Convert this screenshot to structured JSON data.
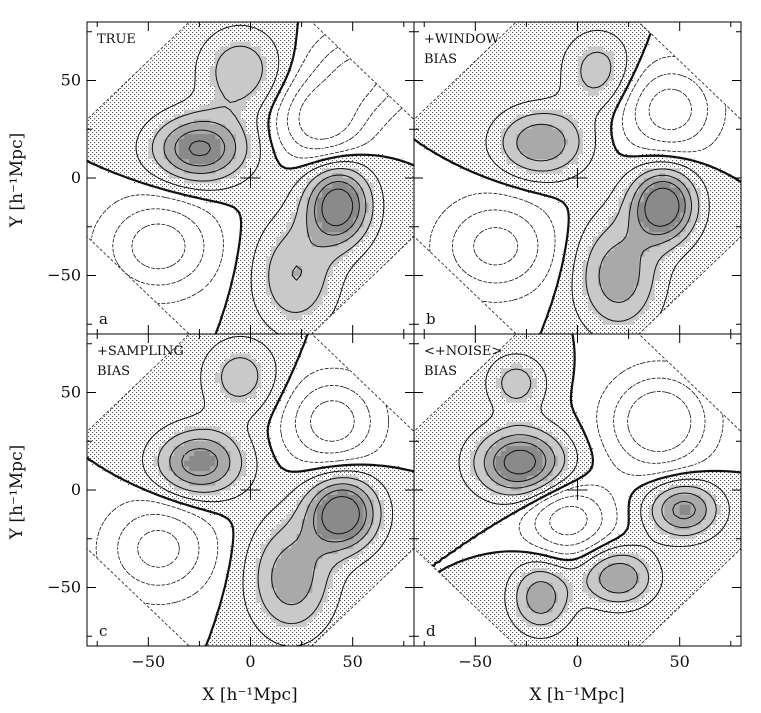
{
  "chart_data": {
    "type": "contour",
    "xlim": [
      -80,
      80
    ],
    "ylim": [
      -80,
      80
    ],
    "x_ticks": [
      -50,
      0,
      50
    ],
    "y_ticks": [
      -50,
      0,
      50
    ],
    "x_tick_labels": [
      "−50",
      "0",
      "50"
    ],
    "y_tick_labels": [
      "−50",
      "0",
      "50"
    ],
    "xlabel": "X [h⁻¹Mpc]",
    "ylabel": "Y [h⁻¹Mpc]",
    "grid": false,
    "panels": [
      {
        "letter": "a",
        "label_lines": [
          "TRUE"
        ],
        "peaks": [
          {
            "x": -25,
            "y": 15,
            "sx": 16,
            "sy": 12,
            "amp": 1.0
          },
          {
            "x": 43,
            "y": -14,
            "sx": 11,
            "sy": 14,
            "amp": 1.15
          },
          {
            "x": 22,
            "y": -50,
            "sx": 14,
            "sy": 20,
            "amp": 0.55
          },
          {
            "x": -5,
            "y": 55,
            "sx": 14,
            "sy": 15,
            "amp": 0.5
          },
          {
            "x": 35,
            "y": 30,
            "sx": 14,
            "sy": 14,
            "amp": -0.7
          },
          {
            "x": -45,
            "y": -35,
            "sx": 18,
            "sy": 16,
            "amp": -0.65
          },
          {
            "x": 55,
            "y": 55,
            "sx": 16,
            "sy": 14,
            "amp": -0.55
          }
        ]
      },
      {
        "letter": "b",
        "label_lines": [
          "+WINDOW",
          "BIAS"
        ],
        "peaks": [
          {
            "x": -18,
            "y": 18,
            "sx": 15,
            "sy": 12,
            "amp": 0.75
          },
          {
            "x": 42,
            "y": -14,
            "sx": 11,
            "sy": 13,
            "amp": 1.2
          },
          {
            "x": 20,
            "y": -50,
            "sx": 14,
            "sy": 20,
            "amp": 0.7
          },
          {
            "x": 10,
            "y": 55,
            "sx": 12,
            "sy": 14,
            "amp": 0.45
          },
          {
            "x": 45,
            "y": 35,
            "sx": 15,
            "sy": 15,
            "amp": -0.65
          },
          {
            "x": -40,
            "y": -35,
            "sx": 18,
            "sy": 16,
            "amp": -0.6
          }
        ]
      },
      {
        "letter": "c",
        "label_lines": [
          "+SAMPLING",
          "BIAS"
        ],
        "peaks": [
          {
            "x": -25,
            "y": 14,
            "sx": 15,
            "sy": 12,
            "amp": 0.9
          },
          {
            "x": 45,
            "y": -12,
            "sx": 12,
            "sy": 13,
            "amp": 1.2
          },
          {
            "x": 20,
            "y": -45,
            "sx": 14,
            "sy": 20,
            "amp": 0.7
          },
          {
            "x": -5,
            "y": 58,
            "sx": 13,
            "sy": 14,
            "amp": 0.45
          },
          {
            "x": 40,
            "y": 35,
            "sx": 15,
            "sy": 15,
            "amp": -0.65
          },
          {
            "x": -45,
            "y": -30,
            "sx": 17,
            "sy": 16,
            "amp": -0.6
          }
        ]
      },
      {
        "letter": "d",
        "label_lines": [
          "<+NOISE>",
          "BIAS"
        ],
        "peaks": [
          {
            "x": -28,
            "y": 14,
            "sx": 15,
            "sy": 12,
            "amp": 1.1
          },
          {
            "x": 52,
            "y": -10,
            "sx": 12,
            "sy": 10,
            "amp": 0.85
          },
          {
            "x": 20,
            "y": -45,
            "sx": 12,
            "sy": 10,
            "amp": 0.75
          },
          {
            "x": -18,
            "y": -55,
            "sx": 10,
            "sy": 12,
            "amp": 0.7
          },
          {
            "x": -30,
            "y": 55,
            "sx": 10,
            "sy": 10,
            "amp": 0.45
          },
          {
            "x": 40,
            "y": 35,
            "sx": 16,
            "sy": 16,
            "amp": -0.8
          },
          {
            "x": -5,
            "y": -15,
            "sx": 14,
            "sy": 12,
            "amp": -0.65
          }
        ]
      }
    ]
  }
}
